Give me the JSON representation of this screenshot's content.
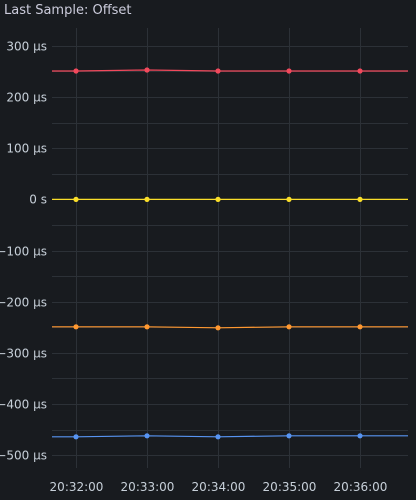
{
  "panel": {
    "title": "Last Sample: Offset"
  },
  "colors": {
    "background": "#181b1f",
    "grid": "#2c3137",
    "text": "#c7d0d9",
    "title": "#ccccdc"
  },
  "chart_data": {
    "type": "line",
    "title": "Last Sample: Offset",
    "xlabel": "",
    "ylabel": "",
    "x": [
      "20:32:00",
      "20:33:00",
      "20:34:00",
      "20:35:00",
      "20:36:00"
    ],
    "y_ticks": [
      300,
      250,
      200,
      150,
      100,
      50,
      0,
      -50,
      -100,
      -150,
      -200,
      -250,
      -300,
      -350,
      -400,
      -450,
      -500
    ],
    "y_tick_labels": [
      "300 µs",
      "",
      "200 µs",
      "",
      "100 µs",
      "",
      "0 s",
      "",
      "−100 µs",
      "",
      "−200 µs",
      "",
      "−300 µs",
      "",
      "−400 µs",
      "",
      "−500 µs"
    ],
    "y_label_ticks": [
      300,
      200,
      100,
      0,
      -100,
      -200,
      -300,
      -400,
      -500
    ],
    "ylim": [
      -525,
      335
    ],
    "y_unit": "µs",
    "grid": true,
    "legend": "none",
    "series": [
      {
        "color": "#f2495c",
        "values": [
          251,
          253,
          251,
          251,
          251
        ]
      },
      {
        "color": "#fade2a",
        "values": [
          0,
          0,
          0,
          0,
          0
        ]
      },
      {
        "color": "#ff9830",
        "values": [
          -249,
          -249,
          -251,
          -249,
          -249
        ]
      },
      {
        "color": "#5794f2",
        "values": [
          -464,
          -462,
          -464,
          -462,
          -462
        ]
      }
    ]
  }
}
